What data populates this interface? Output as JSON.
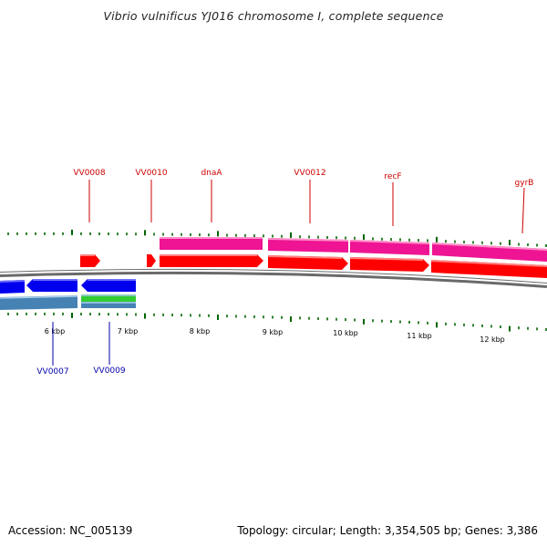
{
  "header": {
    "title": "Vibrio vulnificus YJ016 chromosome I, complete sequence"
  },
  "footer": {
    "accession": "Accession: NC_005139",
    "stats": "Topology: circular; Length: 3,354,505 bp; Genes: 3,386"
  },
  "colors": {
    "forward_cds": "#ff0000",
    "forward_gene": "#ee1493",
    "reverse_cds": "#0000ee",
    "reverse_gene": "#4682b4",
    "rna_feature": "#33cc33",
    "label_forward": "#cc0000",
    "label_reverse": "#0000aa",
    "tick": "#006400",
    "backbone": "#888888"
  },
  "scale": {
    "labels": [
      "6 kbp",
      "7 kbp",
      "8 kbp",
      "9 kbp",
      "10 kbp",
      "11 kbp",
      "12 kbp"
    ]
  },
  "gene_labels": {
    "forward": [
      "VV0008",
      "VV0010",
      "dnaA",
      "VV0012",
      "recF",
      "gyrB"
    ],
    "reverse": [
      "VV0007",
      "VV0009"
    ]
  }
}
